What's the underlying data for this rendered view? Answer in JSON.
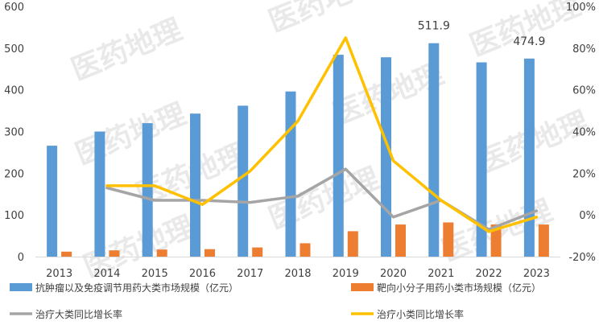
{
  "chart_data": {
    "type": "bar+line",
    "categories": [
      "2013",
      "2014",
      "2015",
      "2016",
      "2017",
      "2018",
      "2019",
      "2020",
      "2021",
      "2022",
      "2023"
    ],
    "left_axis": {
      "ticks": [
        "0",
        "100",
        "200",
        "300",
        "400",
        "500",
        "600"
      ],
      "ylim": [
        0,
        600
      ]
    },
    "right_axis": {
      "ticks": [
        "-20%",
        "0%",
        "20%",
        "40%",
        "60%",
        "80%",
        "100%"
      ],
      "ylim": [
        -20,
        100
      ]
    },
    "series": [
      {
        "name": "抗肿瘤以及免疫调节用药大类市场规模（亿元）",
        "type": "bar",
        "axis": "left",
        "color": "#5b9bd5",
        "values": [
          266,
          300,
          320,
          343,
          362,
          396,
          484,
          478,
          511.9,
          466,
          474.9
        ]
      },
      {
        "name": "靶向小分子用药小类市场规模（亿元）",
        "type": "bar",
        "axis": "left",
        "color": "#ed7d31",
        "values": [
          12,
          15,
          17,
          18,
          22,
          32,
          61,
          77,
          82,
          77,
          77
        ]
      },
      {
        "name": "治疗大类同比增长率",
        "type": "line",
        "axis": "right",
        "color": "#a5a5a5",
        "values": [
          null,
          13,
          7,
          7,
          6,
          9,
          22,
          -1,
          7,
          -7,
          2
        ]
      },
      {
        "name": "治疗小类同比增长率",
        "type": "line",
        "axis": "right",
        "color": "#ffc000",
        "values": [
          null,
          14,
          14,
          5,
          21,
          45,
          85,
          26,
          7,
          -8,
          -1
        ]
      }
    ],
    "data_labels": [
      {
        "category": "2021",
        "text": "511.9"
      },
      {
        "category": "2023",
        "text": "474.9"
      }
    ],
    "watermark": "医药地理"
  }
}
